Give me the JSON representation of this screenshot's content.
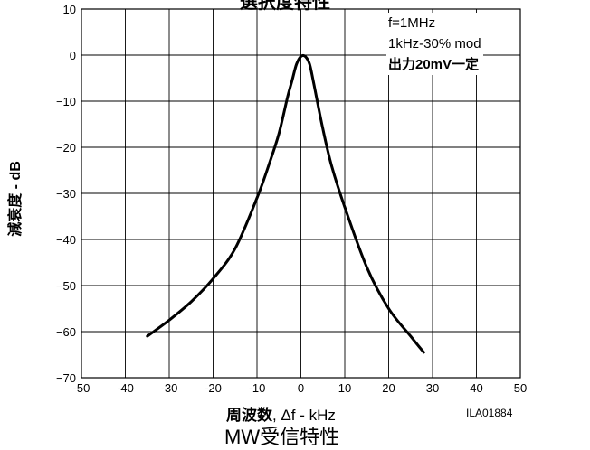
{
  "chart_data": {
    "type": "line",
    "title_top": "選択度特性",
    "title_bottom": "MW受信特性",
    "xlabel_bold": "周波数",
    "xlabel_rest": ", Δf - kHz",
    "ylabel": "減衰度 - dB",
    "figure_code": "ILA01884",
    "annotations": [
      "f=1MHz",
      "1kHz-30% mod",
      "出力20mV一定"
    ],
    "xlim": [
      -50,
      50
    ],
    "ylim": [
      -70,
      10
    ],
    "xticks": [
      -50,
      -40,
      -30,
      -20,
      -10,
      0,
      10,
      20,
      30,
      40,
      50
    ],
    "yticks": [
      10,
      0,
      -10,
      -20,
      -30,
      -40,
      -50,
      -60,
      -70
    ],
    "ytick_labels": [
      "10",
      "0",
      "−10",
      "−20",
      "−30",
      "−40",
      "−50",
      "−60",
      "−70"
    ],
    "grid": true,
    "series": [
      {
        "x": [
          -35,
          -30,
          -25,
          -20,
          -15,
          -10,
          -7,
          -5,
          -3,
          -2,
          -1,
          0,
          1,
          2,
          3,
          5,
          7,
          10,
          15,
          20,
          25,
          28
        ],
        "y": [
          -61,
          -57.5,
          -53.5,
          -48.5,
          -42,
          -31,
          -23,
          -17,
          -9,
          -5.5,
          -2,
          -0.3,
          -0.3,
          -2,
          -6.5,
          -16,
          -24,
          -33,
          -46,
          -55,
          -61,
          -64.5
        ]
      }
    ]
  }
}
